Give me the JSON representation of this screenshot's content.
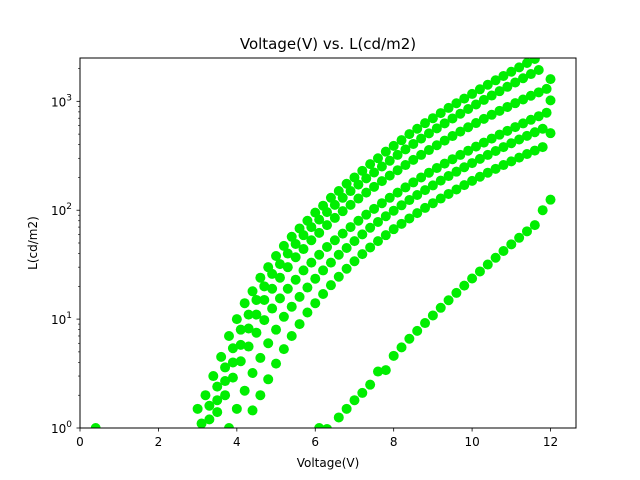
{
  "chart_data": {
    "type": "scatter",
    "title": "Voltage(V) vs. L(cd/m2)",
    "xlabel": "Voltage(V)",
    "ylabel": "L(cd/m2)",
    "xlim": [
      0,
      12.65
    ],
    "ylim": [
      1,
      2500
    ],
    "yscale": "log",
    "grid": false,
    "marker_color": "#00ee00",
    "x_ticks": [
      0,
      2,
      4,
      6,
      8,
      10,
      12
    ],
    "x_tick_labels": [
      "0",
      "2",
      "4",
      "6",
      "8",
      "10",
      "12"
    ],
    "y_ticks": [
      1,
      10,
      100,
      1000
    ],
    "y_tick_labels": [
      "10^0",
      "10^1",
      "10^2",
      "10^3"
    ],
    "series": [
      {
        "points": [
          [
            0.4,
            1.0
          ],
          [
            3.0,
            1.5
          ],
          [
            3.2,
            2.0
          ],
          [
            3.4,
            3.0
          ],
          [
            3.6,
            4.5
          ],
          [
            3.8,
            7
          ],
          [
            4.0,
            10
          ],
          [
            4.2,
            14
          ],
          [
            4.4,
            18
          ],
          [
            4.6,
            24
          ],
          [
            4.8,
            30
          ],
          [
            5.0,
            38
          ],
          [
            5.2,
            47
          ],
          [
            5.4,
            57
          ],
          [
            5.6,
            68
          ],
          [
            5.8,
            80
          ],
          [
            6.0,
            95
          ],
          [
            6.2,
            110
          ],
          [
            6.4,
            130
          ],
          [
            6.6,
            150
          ],
          [
            6.8,
            175
          ],
          [
            7.0,
            200
          ],
          [
            7.2,
            230
          ],
          [
            7.4,
            265
          ],
          [
            7.6,
            300
          ],
          [
            7.8,
            345
          ],
          [
            8.0,
            390
          ],
          [
            8.2,
            440
          ],
          [
            8.4,
            500
          ],
          [
            8.6,
            560
          ],
          [
            8.8,
            630
          ],
          [
            9.0,
            700
          ],
          [
            9.2,
            780
          ],
          [
            9.4,
            870
          ],
          [
            9.6,
            960
          ],
          [
            9.8,
            1060
          ],
          [
            10.0,
            1170
          ],
          [
            10.2,
            1290
          ],
          [
            10.4,
            1420
          ],
          [
            10.6,
            1560
          ],
          [
            10.8,
            1710
          ],
          [
            11.0,
            1870
          ],
          [
            11.2,
            2050
          ],
          [
            11.4,
            2250
          ],
          [
            11.6,
            2450
          ]
        ]
      },
      {
        "points": [
          [
            3.1,
            1.1
          ],
          [
            3.3,
            1.6
          ],
          [
            3.5,
            2.4
          ],
          [
            3.7,
            3.6
          ],
          [
            3.9,
            5.4
          ],
          [
            4.1,
            8
          ],
          [
            4.3,
            11
          ],
          [
            4.5,
            15
          ],
          [
            4.7,
            20
          ],
          [
            4.9,
            26
          ],
          [
            5.1,
            32
          ],
          [
            5.3,
            40
          ],
          [
            5.5,
            49
          ],
          [
            5.7,
            59
          ],
          [
            5.9,
            70
          ],
          [
            6.1,
            82
          ],
          [
            6.3,
            96
          ],
          [
            6.5,
            112
          ],
          [
            6.7,
            130
          ],
          [
            6.9,
            150
          ],
          [
            7.1,
            172
          ],
          [
            7.3,
            196
          ],
          [
            7.5,
            222
          ],
          [
            7.7,
            252
          ],
          [
            7.9,
            285
          ],
          [
            8.1,
            322
          ],
          [
            8.3,
            362
          ],
          [
            8.5,
            406
          ],
          [
            8.7,
            455
          ],
          [
            8.9,
            508
          ],
          [
            9.1,
            565
          ],
          [
            9.3,
            628
          ],
          [
            9.5,
            696
          ],
          [
            9.7,
            770
          ],
          [
            9.9,
            850
          ],
          [
            10.1,
            936
          ],
          [
            10.3,
            1030
          ],
          [
            10.5,
            1130
          ],
          [
            10.7,
            1240
          ],
          [
            10.9,
            1360
          ],
          [
            11.1,
            1490
          ],
          [
            11.3,
            1630
          ],
          [
            11.5,
            1780
          ],
          [
            11.7,
            1940
          ]
        ]
      },
      {
        "points": [
          [
            3.3,
            1.2
          ],
          [
            3.5,
            1.8
          ],
          [
            3.7,
            2.7
          ],
          [
            3.9,
            4.0
          ],
          [
            4.1,
            5.8
          ],
          [
            4.3,
            8.2
          ],
          [
            4.5,
            11
          ],
          [
            4.7,
            15
          ],
          [
            4.9,
            19
          ],
          [
            5.1,
            24
          ],
          [
            5.3,
            30
          ],
          [
            5.5,
            37
          ],
          [
            5.7,
            44
          ],
          [
            5.9,
            53
          ],
          [
            6.1,
            62
          ],
          [
            6.3,
            73
          ],
          [
            6.5,
            85
          ],
          [
            6.7,
            98
          ],
          [
            6.9,
            112
          ],
          [
            7.1,
            128
          ],
          [
            7.3,
            145
          ],
          [
            7.5,
            164
          ],
          [
            7.7,
            185
          ],
          [
            7.9,
            208
          ],
          [
            8.1,
            233
          ],
          [
            8.3,
            260
          ],
          [
            8.5,
            290
          ],
          [
            8.7,
            322
          ],
          [
            8.9,
            357
          ],
          [
            9.1,
            395
          ],
          [
            9.3,
            436
          ],
          [
            9.5,
            480
          ],
          [
            9.7,
            527
          ],
          [
            9.9,
            578
          ],
          [
            10.1,
            632
          ],
          [
            10.3,
            690
          ],
          [
            10.5,
            752
          ],
          [
            10.7,
            818
          ],
          [
            10.9,
            888
          ],
          [
            11.1,
            962
          ],
          [
            11.3,
            1040
          ],
          [
            11.5,
            1125
          ],
          [
            11.7,
            1210
          ],
          [
            11.9,
            1300
          ]
        ]
      },
      {
        "points": [
          [
            3.5,
            1.4
          ],
          [
            3.7,
            2.0
          ],
          [
            3.9,
            2.9
          ],
          [
            4.1,
            4.1
          ],
          [
            4.3,
            5.6
          ],
          [
            4.5,
            7.5
          ],
          [
            4.7,
            9.8
          ],
          [
            4.9,
            12.5
          ],
          [
            5.1,
            15.5
          ],
          [
            5.3,
            19
          ],
          [
            5.5,
            23
          ],
          [
            5.7,
            28
          ],
          [
            5.9,
            33
          ],
          [
            6.1,
            39
          ],
          [
            6.3,
            46
          ],
          [
            6.5,
            53
          ],
          [
            6.7,
            61
          ],
          [
            6.9,
            70
          ],
          [
            7.1,
            80
          ],
          [
            7.3,
            91
          ],
          [
            7.5,
            103
          ],
          [
            7.7,
            116
          ],
          [
            7.9,
            130
          ],
          [
            8.1,
            145
          ],
          [
            8.3,
            162
          ],
          [
            8.5,
            180
          ],
          [
            8.7,
            200
          ],
          [
            8.9,
            221
          ],
          [
            9.1,
            244
          ],
          [
            9.3,
            268
          ],
          [
            9.5,
            294
          ],
          [
            9.7,
            322
          ],
          [
            9.9,
            352
          ],
          [
            10.1,
            384
          ],
          [
            10.3,
            418
          ],
          [
            10.5,
            455
          ],
          [
            10.7,
            494
          ],
          [
            10.9,
            536
          ],
          [
            11.1,
            580
          ],
          [
            11.3,
            627
          ],
          [
            11.5,
            677
          ],
          [
            11.7,
            730
          ],
          [
            11.9,
            786
          ],
          [
            12.0,
            1020
          ]
        ]
      },
      {
        "points": [
          [
            3.8,
            1.0
          ],
          [
            4.0,
            1.5
          ],
          [
            4.2,
            2.2
          ],
          [
            4.4,
            3.2
          ],
          [
            4.6,
            4.4
          ],
          [
            4.8,
            6.0
          ],
          [
            5.0,
            8.0
          ],
          [
            5.2,
            10.5
          ],
          [
            5.4,
            13
          ],
          [
            5.6,
            16
          ],
          [
            5.8,
            19.5
          ],
          [
            6.0,
            23.5
          ],
          [
            6.2,
            28
          ],
          [
            6.4,
            33
          ],
          [
            6.6,
            39
          ],
          [
            6.8,
            45
          ],
          [
            7.0,
            52
          ],
          [
            7.2,
            60
          ],
          [
            7.4,
            69
          ],
          [
            7.6,
            78
          ],
          [
            7.8,
            88
          ],
          [
            8.0,
            99
          ],
          [
            8.2,
            111
          ],
          [
            8.4,
            124
          ],
          [
            8.6,
            138
          ],
          [
            8.8,
            153
          ],
          [
            9.0,
            169
          ],
          [
            9.2,
            187
          ],
          [
            9.4,
            206
          ],
          [
            9.6,
            226
          ],
          [
            9.8,
            248
          ],
          [
            10.0,
            271
          ],
          [
            10.2,
            296
          ],
          [
            10.4,
            322
          ],
          [
            10.6,
            350
          ],
          [
            10.8,
            380
          ],
          [
            11.0,
            412
          ],
          [
            11.2,
            446
          ],
          [
            11.4,
            482
          ],
          [
            11.6,
            520
          ],
          [
            11.8,
            560
          ],
          [
            12.0,
            1600
          ]
        ]
      },
      {
        "points": [
          [
            4.4,
            1.45
          ],
          [
            4.6,
            2.0
          ],
          [
            4.8,
            2.8
          ],
          [
            5.0,
            3.9
          ],
          [
            5.2,
            5.3
          ],
          [
            5.4,
            7.0
          ],
          [
            5.6,
            9.0
          ],
          [
            5.8,
            11.5
          ],
          [
            6.0,
            14
          ],
          [
            6.2,
            17
          ],
          [
            6.4,
            20.5
          ],
          [
            6.6,
            24.5
          ],
          [
            6.8,
            29
          ],
          [
            7.0,
            34
          ],
          [
            7.2,
            39.5
          ],
          [
            7.4,
            45.5
          ],
          [
            7.6,
            52
          ],
          [
            7.8,
            59
          ],
          [
            8.0,
            67
          ],
          [
            8.2,
            75
          ],
          [
            8.4,
            84
          ],
          [
            8.6,
            94
          ],
          [
            8.8,
            105
          ],
          [
            9.0,
            116
          ],
          [
            9.2,
            128
          ],
          [
            9.4,
            141
          ],
          [
            9.6,
            155
          ],
          [
            9.8,
            170
          ],
          [
            10.0,
            186
          ],
          [
            10.2,
            203
          ],
          [
            10.4,
            221
          ],
          [
            10.6,
            240
          ],
          [
            10.8,
            260
          ],
          [
            11.0,
            281
          ],
          [
            11.2,
            304
          ],
          [
            11.4,
            328
          ],
          [
            11.6,
            353
          ],
          [
            11.8,
            380
          ],
          [
            12.0,
            510
          ]
        ]
      },
      {
        "points": [
          [
            6.1,
            1.0
          ],
          [
            6.3,
            0.98
          ],
          [
            6.6,
            1.25
          ],
          [
            6.8,
            1.5
          ],
          [
            7.0,
            1.8
          ],
          [
            7.2,
            2.1
          ],
          [
            7.4,
            2.5
          ],
          [
            7.6,
            3.3
          ],
          [
            7.8,
            3.4
          ],
          [
            8.0,
            4.6
          ],
          [
            8.2,
            5.5
          ],
          [
            8.4,
            6.6
          ],
          [
            8.6,
            7.8
          ],
          [
            8.8,
            9.2
          ],
          [
            9.0,
            10.8
          ],
          [
            9.2,
            12.7
          ],
          [
            9.4,
            14.9
          ],
          [
            9.6,
            17.4
          ],
          [
            9.8,
            20.3
          ],
          [
            10.0,
            23.6
          ],
          [
            10.2,
            27.4
          ],
          [
            10.4,
            31.7
          ],
          [
            10.6,
            36.6
          ],
          [
            10.8,
            42.2
          ],
          [
            11.0,
            48.6
          ],
          [
            11.2,
            55.8
          ],
          [
            11.4,
            64
          ],
          [
            11.6,
            73
          ],
          [
            11.8,
            100
          ],
          [
            12.0,
            125
          ]
        ]
      }
    ]
  }
}
